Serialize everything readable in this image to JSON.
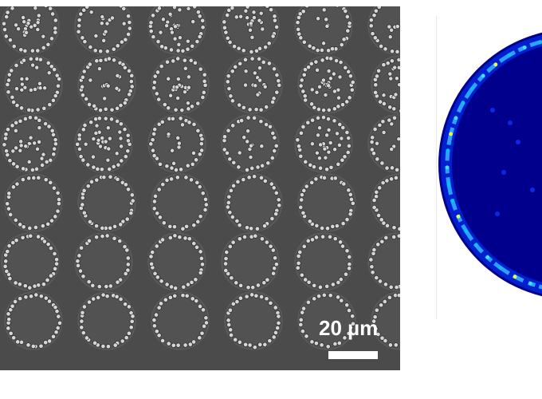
{
  "scale_bar": {
    "label": "20 µm"
  },
  "colors": {
    "micrograph_background": "#4b4b4b",
    "bead": "#d6d6d6",
    "heatmap_background": "#00008c",
    "heatmap_ring": "#2fa0ff",
    "heatmap_hot": "#e8ff40"
  },
  "grid": {
    "rows": 6,
    "columns": 6
  }
}
